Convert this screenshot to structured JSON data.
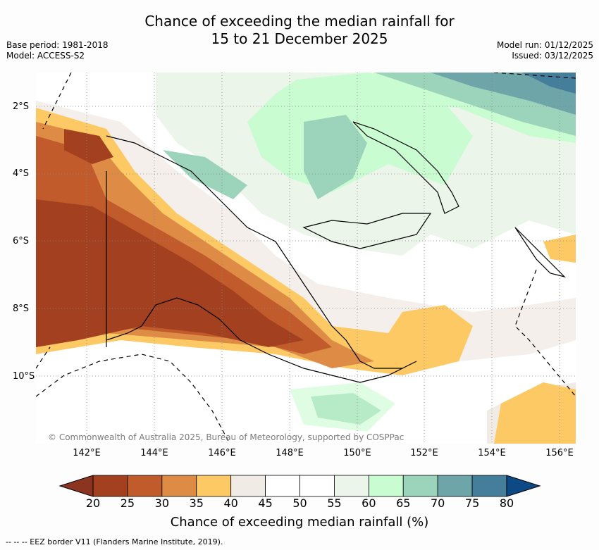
{
  "header": {
    "title_line1": "Chance of exceeding the median rainfall for",
    "title_line2": "15 to 21 December 2025",
    "base_period": "Base period: 1981-2018",
    "model": "Model: ACCESS-S2",
    "model_run": "Model run: 01/12/2025",
    "issued": "Issued: 03/12/2025"
  },
  "map": {
    "lat_labels": [
      "2°S",
      "4°S",
      "6°S",
      "8°S",
      "10°S"
    ],
    "lon_labels": [
      "142°E",
      "144°E",
      "146°E",
      "148°E",
      "150°E",
      "152°E",
      "154°E",
      "156°E"
    ],
    "credit": "© Commonwealth of Australia 2025, Bureau of Meteorology, supported by COSPPac"
  },
  "colorbar": {
    "ticks": [
      "20",
      "25",
      "30",
      "35",
      "40",
      "45",
      "50",
      "55",
      "60",
      "65",
      "70",
      "75",
      "80"
    ],
    "colors": [
      "#a3401f",
      "#c15b2c",
      "#de8c45",
      "#fdc964",
      "#f1ebe6",
      "#ffffff",
      "#ffffff",
      "#ebf5ea",
      "#c9fcd0",
      "#9cd3bb",
      "#6da5a8",
      "#457e9a"
    ],
    "below_color": "#8b3520",
    "above_color": "#0d4a85",
    "label": "Chance of exceeding median rainfall (%)"
  },
  "footer": {
    "legend": "-- -- -- EEZ border V11 (Flanders Marine Institute, 2019)."
  }
}
